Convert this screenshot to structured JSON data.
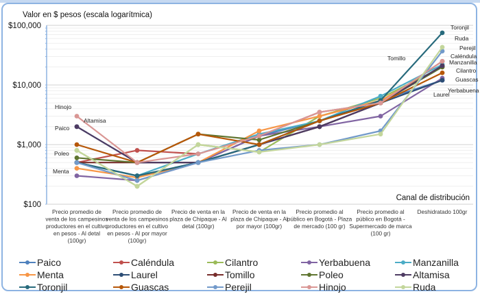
{
  "chart_data": {
    "type": "line",
    "title": "",
    "ylabel": "Valor en $ pesos (escala logarítmica)",
    "xlabel": "Canal de distribución",
    "yscale": "log",
    "ylim": [
      100,
      100000
    ],
    "yticks": [
      {
        "value": 100,
        "label": "$100"
      },
      {
        "value": 1000,
        "label": "$1,000"
      },
      {
        "value": 10000,
        "label": "$10,000"
      },
      {
        "value": 100000,
        "label": "$100,000"
      }
    ],
    "grid": true,
    "legend_position": "bottom",
    "categories": [
      [
        "Precio promedio de",
        "venta de los campesinos",
        "productores en el cultivo",
        "en pesos - Al detal",
        "(100gr)"
      ],
      [
        "Precio promedio de",
        "venta de los campesinos",
        "productores en el cultivo",
        "en pesos - Al por mayor",
        "(100gr)"
      ],
      [
        "Precio de venta en la",
        "plaza de Chipaque - Al",
        "detal (100gr)"
      ],
      [
        "Precio de venta en la",
        "plaza de Chipaque - Al",
        "por mayor (100gr)"
      ],
      [
        "Precio promedio al",
        "público en Bogotá - Plaza",
        "de mercado (100 gr)"
      ],
      [
        "Precio promedio al",
        "público en Bogotá -",
        "Supermercado de marca",
        "(100 gr)"
      ],
      [
        "Deshidratado 100gr"
      ]
    ],
    "series": [
      {
        "name": "Paico",
        "color": "#4f81bd",
        "values": [
          2000,
          500,
          500,
          1400,
          2500,
          5500,
          12000
        ]
      },
      {
        "name": "Caléndula",
        "color": "#c0504d",
        "values": [
          500,
          800,
          700,
          1400,
          3500,
          5000,
          25000
        ]
      },
      {
        "name": "Cilantro",
        "color": "#9bbb59",
        "values": [
          800,
          200,
          1000,
          750,
          3000,
          6000,
          20000
        ]
      },
      {
        "name": "Yerbabuena",
        "color": "#8064a2",
        "values": [
          300,
          250,
          500,
          1400,
          2000,
          3000,
          13000
        ]
      },
      {
        "name": "Manzanilla",
        "color": "#4bacc6",
        "values": [
          500,
          300,
          700,
          1500,
          2500,
          6500,
          22000
        ]
      },
      {
        "name": "Menta",
        "color": "#f79646",
        "values": [
          400,
          280,
          500,
          1700,
          3000,
          5500,
          20000
        ]
      },
      {
        "name": "Laurel",
        "color": "#2c4d75",
        "values": [
          500,
          300,
          500,
          1000,
          2000,
          5000,
          12000
        ]
      },
      {
        "name": "Tomillo",
        "color": "#772c2a",
        "values": [
          500,
          500,
          500,
          1000,
          2000,
          5000,
          21000
        ]
      },
      {
        "name": "Poleo",
        "color": "#5f7530",
        "values": [
          600,
          500,
          1500,
          1200,
          2500,
          5000,
          20000
        ]
      },
      {
        "name": "Altamisa",
        "color": "#4d3b62",
        "values": [
          2000,
          500,
          500,
          1000,
          2000,
          5000,
          21000
        ]
      },
      {
        "name": "Toronjil",
        "color": "#276a7c",
        "values": [
          500,
          300,
          500,
          1000,
          2500,
          5500,
          75000
        ]
      },
      {
        "name": "Guascas",
        "color": "#b65708",
        "values": [
          1000,
          500,
          1500,
          1000,
          2500,
          5000,
          16000
        ]
      },
      {
        "name": "Perejil",
        "color": "#729aca",
        "values": [
          500,
          250,
          500,
          800,
          1000,
          1700,
          37000
        ]
      },
      {
        "name": "Hinojo",
        "color": "#d99694",
        "values": [
          3000,
          500,
          700,
          1400,
          3500,
          5000,
          25000
        ]
      },
      {
        "name": "Ruda",
        "color": "#c3d69b",
        "values": [
          800,
          200,
          1000,
          750,
          1000,
          1500,
          43000
        ]
      }
    ],
    "annotations": [
      {
        "text": "Hinojo",
        "near": "Hinojo",
        "category": 0
      },
      {
        "text": "Altamisa",
        "near": "Altamisa",
        "category": 0
      },
      {
        "text": "Paico",
        "near": "Paico",
        "category": 0
      },
      {
        "text": "Poleo",
        "near": "Poleo",
        "category": 0
      },
      {
        "text": "Menta",
        "near": "Menta",
        "category": 0
      },
      {
        "text": "Tomillo",
        "near": "Tomillo",
        "category": 5
      },
      {
        "text": "Toronjil",
        "near": "Toronjil",
        "category": 6
      },
      {
        "text": "Ruda",
        "near": "Ruda",
        "category": 6
      },
      {
        "text": "Perejil",
        "near": "Perejil",
        "category": 6
      },
      {
        "text": "Caléndula",
        "near": "Caléndula",
        "category": 6
      },
      {
        "text": "Manzanilla",
        "near": "Manzanilla",
        "category": 6
      },
      {
        "text": "Cilantro",
        "near": "Cilantro",
        "category": 6
      },
      {
        "text": "Guascas",
        "near": "Guascas",
        "category": 6
      },
      {
        "text": "Yerbabuena",
        "near": "Yerbabuena",
        "category": 6
      },
      {
        "text": "Laurel",
        "near": "Laurel",
        "category": 6
      }
    ]
  }
}
